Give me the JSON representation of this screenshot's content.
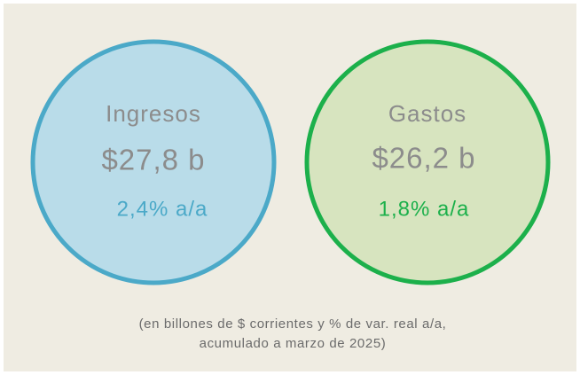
{
  "cards": [
    {
      "label": "Ingresos",
      "amount": "$27,8 b",
      "change": "2,4% a/a"
    },
    {
      "label": "Gastos",
      "amount": "$26,2 b",
      "change": "1,8% a/a"
    }
  ],
  "footnote": [
    "(en billones de $ corrientes y % de var. real a/a,",
    "acumulado a marzo de 2025)"
  ]
}
